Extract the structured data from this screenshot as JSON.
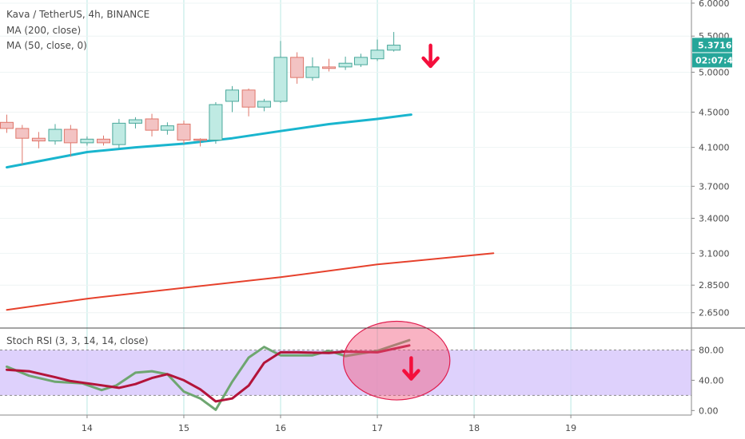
{
  "chart_data": {
    "type": "candlestick",
    "title": "Kava / TetherUS, 4h, BINANCE",
    "indicators": [
      "MA (200, close)",
      "MA (50, close, 0)"
    ],
    "price_axis": {
      "range": [
        2.55,
        6.05
      ],
      "ticks": [
        "6.0000",
        "5.5000",
        "5.0000",
        "4.5000",
        "4.1000",
        "3.7000",
        "3.4000",
        "3.1000",
        "2.8500",
        "2.6500"
      ],
      "last_price": "5.3716",
      "countdown": "02:07:47"
    },
    "x_axis": {
      "ticks": [
        "14",
        "15",
        "16",
        "17",
        "18",
        "19"
      ],
      "range": [
        13.1,
        20.8
      ]
    },
    "candles": [
      {
        "t": 13.17,
        "open": 4.38,
        "high": 4.47,
        "low": 4.26,
        "close": 4.31
      },
      {
        "t": 13.33,
        "open": 4.31,
        "high": 4.35,
        "low": 3.92,
        "close": 4.2
      },
      {
        "t": 13.5,
        "open": 4.2,
        "high": 4.27,
        "low": 4.09,
        "close": 4.17
      },
      {
        "t": 13.67,
        "open": 4.17,
        "high": 4.36,
        "low": 4.13,
        "close": 4.3
      },
      {
        "t": 13.83,
        "open": 4.3,
        "high": 4.35,
        "low": 4.0,
        "close": 4.15
      },
      {
        "t": 14.0,
        "open": 4.15,
        "high": 4.22,
        "low": 4.12,
        "close": 4.19
      },
      {
        "t": 14.17,
        "open": 4.19,
        "high": 4.23,
        "low": 4.12,
        "close": 4.15
      },
      {
        "t": 14.33,
        "open": 4.13,
        "high": 4.42,
        "low": 4.09,
        "close": 4.37
      },
      {
        "t": 14.5,
        "open": 4.37,
        "high": 4.44,
        "low": 4.31,
        "close": 4.41
      },
      {
        "t": 14.67,
        "open": 4.42,
        "high": 4.48,
        "low": 4.22,
        "close": 4.29
      },
      {
        "t": 14.83,
        "open": 4.29,
        "high": 4.38,
        "low": 4.24,
        "close": 4.34
      },
      {
        "t": 15.0,
        "open": 4.36,
        "high": 4.4,
        "low": 4.14,
        "close": 4.18
      },
      {
        "t": 15.17,
        "open": 4.19,
        "high": 4.2,
        "low": 4.11,
        "close": 4.18
      },
      {
        "t": 15.33,
        "open": 4.18,
        "high": 4.62,
        "low": 4.14,
        "close": 4.59
      },
      {
        "t": 15.5,
        "open": 4.63,
        "high": 4.82,
        "low": 4.5,
        "close": 4.77
      },
      {
        "t": 15.67,
        "open": 4.77,
        "high": 4.79,
        "low": 4.45,
        "close": 4.56
      },
      {
        "t": 15.83,
        "open": 4.56,
        "high": 4.66,
        "low": 4.51,
        "close": 4.63
      },
      {
        "t": 16.0,
        "open": 4.63,
        "high": 5.43,
        "low": 4.61,
        "close": 5.2
      },
      {
        "t": 16.17,
        "open": 5.2,
        "high": 5.27,
        "low": 4.85,
        "close": 4.93
      },
      {
        "t": 16.33,
        "open": 4.93,
        "high": 5.2,
        "low": 4.89,
        "close": 5.07
      },
      {
        "t": 16.5,
        "open": 5.07,
        "high": 5.18,
        "low": 5.01,
        "close": 5.05
      },
      {
        "t": 16.67,
        "open": 5.07,
        "high": 5.21,
        "low": 5.03,
        "close": 5.12
      },
      {
        "t": 16.83,
        "open": 5.1,
        "high": 5.25,
        "low": 5.07,
        "close": 5.2
      },
      {
        "t": 17.0,
        "open": 5.18,
        "high": 5.45,
        "low": 5.15,
        "close": 5.3
      },
      {
        "t": 17.17,
        "open": 5.3,
        "high": 5.56,
        "low": 5.28,
        "close": 5.37
      }
    ],
    "ma_200": {
      "color": "#e6412c",
      "points": [
        [
          13.17,
          2.67
        ],
        [
          14.0,
          2.75
        ],
        [
          15.0,
          2.83
        ],
        [
          16.0,
          2.91
        ],
        [
          17.0,
          3.01
        ],
        [
          18.2,
          3.1
        ]
      ]
    },
    "ma_50": {
      "color": "#19b5ce",
      "points": [
        [
          13.17,
          3.89
        ],
        [
          14.0,
          4.05
        ],
        [
          14.5,
          4.1
        ],
        [
          15.0,
          4.14
        ],
        [
          15.5,
          4.2
        ],
        [
          16.0,
          4.28
        ],
        [
          16.5,
          4.36
        ],
        [
          17.0,
          4.42
        ],
        [
          17.35,
          4.47
        ]
      ]
    },
    "arrow_main": {
      "t": 17.55,
      "price": 5.08,
      "color": "#f40f3c"
    },
    "stoch_rsi": {
      "label": "Stoch RSI (3, 3, 14, 14, close)",
      "range": [
        -6,
        108
      ],
      "ticks": [
        "80.00",
        "40.00",
        "0.00"
      ],
      "band": [
        20,
        80
      ],
      "k": {
        "color": "#6ea670",
        "points": [
          [
            13.17,
            58
          ],
          [
            13.4,
            46
          ],
          [
            13.67,
            38
          ],
          [
            13.95,
            36
          ],
          [
            14.15,
            27
          ],
          [
            14.3,
            33
          ],
          [
            14.5,
            50
          ],
          [
            14.67,
            52
          ],
          [
            14.83,
            48
          ],
          [
            15.0,
            25
          ],
          [
            15.17,
            16
          ],
          [
            15.33,
            1
          ],
          [
            15.5,
            38
          ],
          [
            15.67,
            70
          ],
          [
            15.83,
            84
          ],
          [
            16.0,
            73
          ],
          [
            16.33,
            73
          ],
          [
            16.5,
            79
          ],
          [
            16.67,
            72
          ],
          [
            17.0,
            79
          ],
          [
            17.33,
            93
          ]
        ]
      },
      "d": {
        "color": "#b3143a",
        "points": [
          [
            13.17,
            54
          ],
          [
            13.4,
            52
          ],
          [
            13.67,
            44
          ],
          [
            13.83,
            39
          ],
          [
            14.0,
            36
          ],
          [
            14.33,
            30
          ],
          [
            14.5,
            35
          ],
          [
            14.67,
            43
          ],
          [
            14.83,
            48
          ],
          [
            15.0,
            40
          ],
          [
            15.17,
            28
          ],
          [
            15.33,
            12
          ],
          [
            15.5,
            16
          ],
          [
            15.67,
            33
          ],
          [
            15.83,
            63
          ],
          [
            16.0,
            77
          ],
          [
            16.17,
            77
          ],
          [
            16.5,
            76
          ],
          [
            16.67,
            78
          ],
          [
            17.0,
            77
          ],
          [
            17.33,
            86
          ]
        ]
      },
      "highlight": {
        "center": [
          17.2,
          66
        ],
        "rx_days": 0.55,
        "ry_value": 52
      },
      "arrow": {
        "t": 17.35,
        "value": 42,
        "color": "#f40f3c"
      }
    }
  }
}
